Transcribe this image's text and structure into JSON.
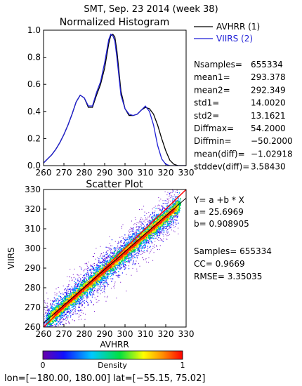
{
  "page_title": "SMT,  Sep. 23 2014 (week 38)",
  "chart_data": [
    {
      "type": "line",
      "title": "Normalized Histogram",
      "xlim": [
        260,
        330
      ],
      "ylim": [
        0.0,
        1.0
      ],
      "x_ticks": [
        260,
        270,
        280,
        290,
        300,
        310,
        320,
        330
      ],
      "y_ticks": [
        "0.0",
        "0.2",
        "0.4",
        "0.6",
        "0.8",
        "1.0"
      ],
      "y_tick_values": [
        0.0,
        0.2,
        0.4,
        0.6,
        0.8,
        1.0
      ],
      "legend_position": "right",
      "series": [
        {
          "name": "AVHRR (1)",
          "color": "#000000",
          "x": [
            260,
            262,
            264,
            266,
            268,
            270,
            272,
            274,
            276,
            278,
            280,
            282,
            284,
            286,
            288,
            290,
            292,
            293,
            294,
            295,
            296,
            298,
            300,
            302,
            304,
            306,
            308,
            310,
            312,
            314,
            316,
            318,
            320,
            322,
            324,
            326,
            328,
            330
          ],
          "y": [
            0.02,
            0.05,
            0.08,
            0.12,
            0.17,
            0.23,
            0.3,
            0.38,
            0.47,
            0.52,
            0.5,
            0.43,
            0.43,
            0.52,
            0.6,
            0.72,
            0.9,
            0.96,
            0.97,
            0.95,
            0.85,
            0.55,
            0.42,
            0.37,
            0.37,
            0.38,
            0.41,
            0.43,
            0.42,
            0.38,
            0.3,
            0.2,
            0.11,
            0.04,
            0.01,
            0.0,
            0.0,
            0.0
          ]
        },
        {
          "name": "VIIRS (2)",
          "color": "#1f1fd6",
          "x": [
            260,
            262,
            264,
            266,
            268,
            270,
            272,
            274,
            276,
            278,
            280,
            282,
            284,
            286,
            288,
            290,
            292,
            293,
            294,
            295,
            296,
            298,
            300,
            302,
            304,
            306,
            308,
            310,
            312,
            314,
            316,
            318,
            320,
            322,
            324,
            326,
            328,
            330
          ],
          "y": [
            0.02,
            0.05,
            0.08,
            0.12,
            0.17,
            0.23,
            0.3,
            0.38,
            0.47,
            0.52,
            0.5,
            0.44,
            0.44,
            0.54,
            0.62,
            0.76,
            0.93,
            0.97,
            0.96,
            0.92,
            0.8,
            0.52,
            0.42,
            0.38,
            0.37,
            0.38,
            0.41,
            0.44,
            0.4,
            0.3,
            0.15,
            0.05,
            0.01,
            0.0,
            0.0,
            0.0,
            0.0,
            0.0
          ]
        }
      ]
    },
    {
      "type": "scatter",
      "title": "Scatter Plot",
      "xlabel": "AVHRR",
      "ylabel": "VIIRS",
      "xlim": [
        260,
        330
      ],
      "ylim": [
        260,
        330
      ],
      "x_ticks": [
        260,
        270,
        280,
        290,
        300,
        310,
        320,
        330
      ],
      "y_ticks": [
        260,
        270,
        280,
        290,
        300,
        310,
        320,
        330
      ],
      "density_colorscale": "rainbow",
      "fit_line": {
        "a": 25.6969,
        "b": 0.908905,
        "color": "#000000"
      },
      "identity_line": {
        "color": "#ff0000"
      },
      "note": ""
    }
  ],
  "stats": [
    {
      "label": "Nsamples=",
      "value": "655334"
    },
    {
      "label": "mean1=",
      "value": "293.378"
    },
    {
      "label": "mean2=",
      "value": "292.349"
    },
    {
      "label": "std1=",
      "value": "14.0020"
    },
    {
      "label": "std2=",
      "value": "13.1621"
    },
    {
      "label": "Diffmax=",
      "value": "54.2000"
    },
    {
      "label": "Diffmin=",
      "value": "−50.2000"
    },
    {
      "label": "mean(diff)=",
      "value": "−1.02918"
    },
    {
      "label": "stddev(diff)=",
      "value": "3.58430"
    }
  ],
  "regression": {
    "equation": "Y=  a  +b  * X",
    "a_label": "a=  25.6969",
    "b_label": "b=  0.908905",
    "samples_label": "Samples=  655334",
    "cc_label": "CC=    0.9669",
    "rmse_label": "RMSE=  3.35035"
  },
  "colorbar": {
    "label": "Density",
    "min_label": "0",
    "max_label": "1"
  },
  "region_label": "lon=[−180.00,  180.00]   lat=[−55.15,  75.02]"
}
